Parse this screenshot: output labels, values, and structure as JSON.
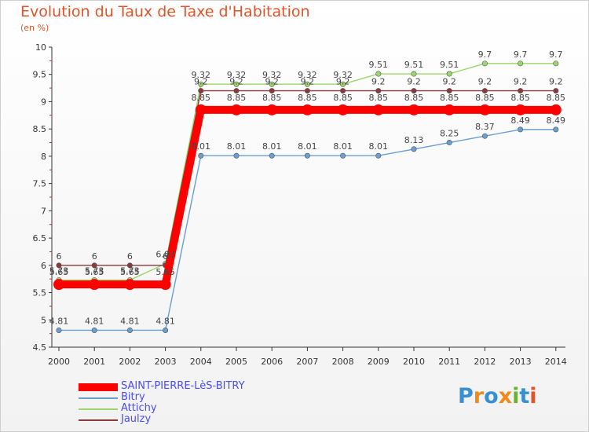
{
  "header": {
    "title": "Evolution du Taux de Taxe d'Habitation",
    "unit": "(en %)"
  },
  "logo": {
    "text": "Proxiti",
    "letters": [
      "P",
      "r",
      "o",
      "x",
      "i",
      "t",
      "i"
    ]
  },
  "chart_data": {
    "type": "line",
    "title": "Evolution du Taux de Taxe d'Habitation",
    "ylabel": "(en %)",
    "xlabel": "",
    "ylim": [
      4.5,
      10
    ],
    "grid": false,
    "legend_position": "bottom-left",
    "categories": [
      "2000",
      "2001",
      "2002",
      "2003",
      "2004",
      "2005",
      "2006",
      "2007",
      "2008",
      "2009",
      "2010",
      "2011",
      "2012",
      "2013",
      "2014"
    ],
    "y_ticks": [
      "4.5",
      "5",
      "5.5",
      "6",
      "6.5",
      "7",
      "7.5",
      "8",
      "8.5",
      "9",
      "9.5",
      "10"
    ],
    "series": [
      {
        "name": "SAINT-PIERRE-LèS-BITRY",
        "color": "#ff0000",
        "values": [
          5.65,
          5.65,
          5.65,
          5.65,
          8.85,
          8.85,
          8.85,
          8.85,
          8.85,
          8.85,
          8.85,
          8.85,
          8.85,
          8.85,
          8.85
        ],
        "labels": [
          "5.65",
          "5.65",
          "5.65",
          "5.65",
          "8.85",
          "8.85",
          "8.85",
          "8.85",
          "8.85",
          "8.85",
          "8.85",
          "8.85",
          "8.85",
          "8.85",
          "8.85"
        ]
      },
      {
        "name": "Bitry",
        "color": "#6a9fcf",
        "values": [
          4.81,
          4.81,
          4.81,
          4.81,
          8.01,
          8.01,
          8.01,
          8.01,
          8.01,
          8.01,
          8.13,
          8.25,
          8.37,
          8.49,
          8.49
        ],
        "labels": [
          "4.81",
          "4.81",
          "4.81",
          "4.81",
          "8.01",
          "8.01",
          "8.01",
          "8.01",
          "8.01",
          "8.01",
          "8.13",
          "8.25",
          "8.37",
          "8.49",
          "8.49"
        ]
      },
      {
        "name": "Attichy",
        "color": "#9ad86c",
        "values": [
          5.73,
          5.73,
          5.73,
          6.03,
          9.32,
          9.32,
          9.32,
          9.32,
          9.32,
          9.51,
          9.51,
          9.51,
          9.7,
          9.7,
          9.7
        ],
        "labels": [
          "5.73",
          "5.73",
          "5.73",
          "6.03",
          "9.32",
          "9.32",
          "9.32",
          "9.32",
          "9.32",
          "9.51",
          "9.51",
          "9.51",
          "9.7",
          "9.7",
          "9.7"
        ]
      },
      {
        "name": "Jaulzy",
        "color": "#8a3a3a",
        "values": [
          6,
          6,
          6,
          6,
          9.2,
          9.2,
          9.2,
          9.2,
          9.2,
          9.2,
          9.2,
          9.2,
          9.2,
          9.2,
          9.2
        ],
        "labels": [
          "6",
          "6",
          "6",
          "6",
          "9.2",
          "9.2",
          "9.2",
          "9.2",
          "9.2",
          "9.2",
          "9.2",
          "9.2",
          "9.2",
          "9.2",
          "9.2"
        ]
      }
    ]
  }
}
